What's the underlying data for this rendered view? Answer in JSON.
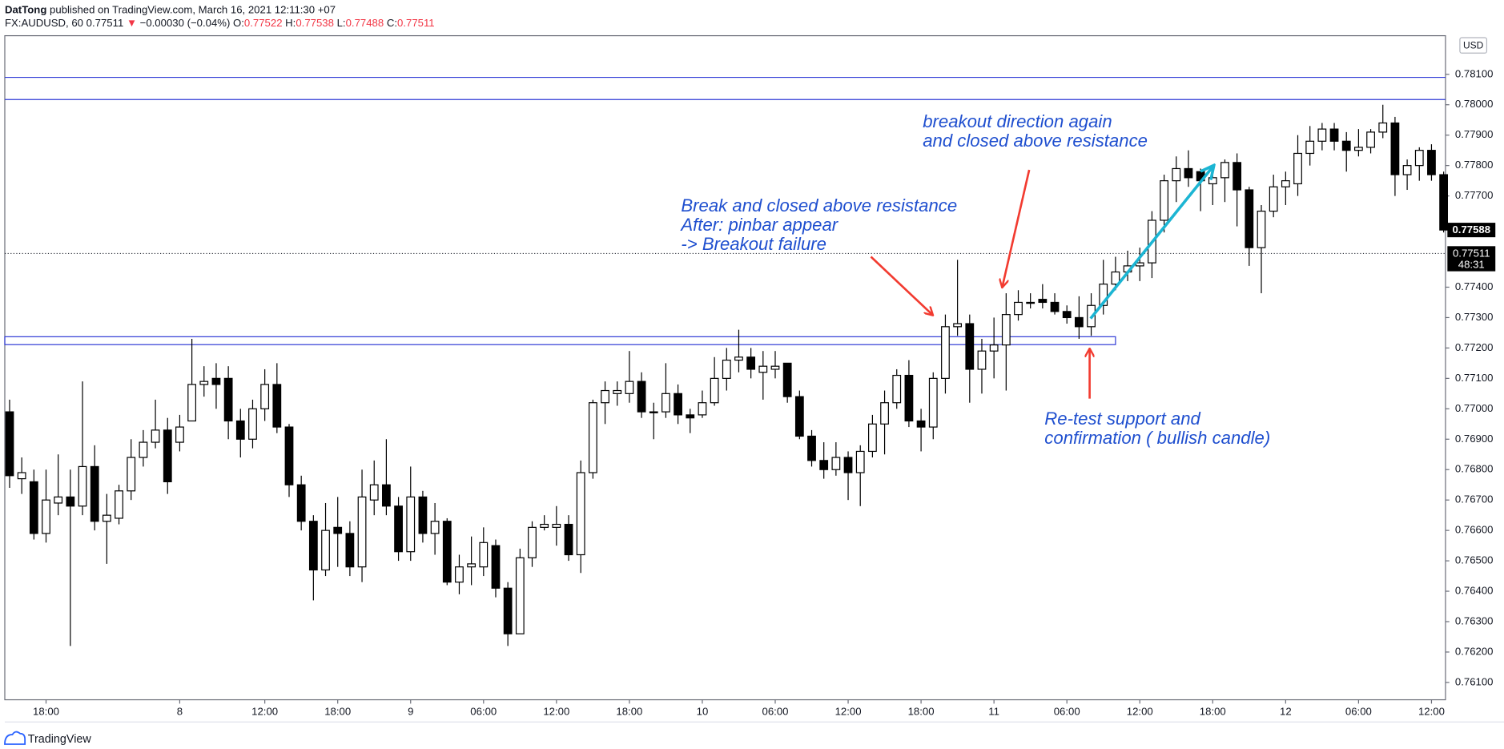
{
  "header": {
    "author": "DatTong",
    "published": "published on TradingView.com, March 16, 2021 12:11:30 +07",
    "symbol": "FX:AUDUSD, 60",
    "last": "0.77511",
    "arrow": "▼",
    "change": "−0.00030 (−0.04%)",
    "o_label": "O:",
    "o": "0.77522",
    "h_label": "H:",
    "h": "0.77538",
    "l_label": "L:",
    "l": "0.77488",
    "c_label": "C:",
    "c": "0.77511"
  },
  "footer": {
    "brand": "TradingView"
  },
  "chart_data": {
    "type": "candlestick",
    "categories": [
      null,
      null,
      null,
      "18:00",
      null,
      null,
      null,
      null,
      null,
      null,
      null,
      null,
      null,
      null,
      "8",
      null,
      null,
      null,
      null,
      null,
      null,
      "12:00",
      null,
      null,
      null,
      null,
      null,
      "18:00",
      null,
      null,
      null,
      null,
      null,
      "9",
      null,
      null,
      null,
      null,
      null,
      "06:00",
      null,
      null,
      null,
      null,
      null,
      "12:00",
      null,
      null,
      null,
      null,
      null,
      "18:00",
      null,
      null,
      null,
      null,
      null,
      "10",
      null,
      null,
      null,
      null,
      null,
      "06:00",
      null,
      null,
      null,
      null,
      null,
      "12:00",
      null,
      null,
      null,
      null,
      null,
      "18:00",
      null,
      null,
      null,
      null,
      null,
      "11",
      null,
      null,
      null,
      null,
      null,
      "06:00",
      null,
      null,
      null,
      null,
      null,
      "12:00",
      null,
      null,
      null,
      null,
      null,
      "18:00",
      null,
      null,
      null,
      null,
      null,
      "12",
      null,
      null,
      null,
      null,
      null,
      "06:00",
      null,
      null,
      null,
      null,
      null,
      "12:00",
      null
    ],
    "open": [
      0.7699,
      0.7677,
      0.7676,
      0.7659,
      0.7669,
      0.7671,
      0.7668,
      0.7681,
      0.7663,
      0.7664,
      0.7673,
      0.7684,
      0.7689,
      0.7693,
      0.7689,
      0.7696,
      0.7708,
      0.771,
      0.771,
      0.7696,
      0.769,
      0.77,
      0.7708,
      0.7694,
      0.7675,
      0.7663,
      0.7647,
      0.7661,
      0.7659,
      0.7648,
      0.767,
      0.7675,
      0.7668,
      0.7653,
      0.7671,
      0.7659,
      0.7663,
      0.7643,
      0.7648,
      0.7648,
      0.7655,
      0.7641,
      0.7626,
      0.7651,
      0.7661,
      0.7661,
      0.7662,
      0.7652,
      0.7679,
      0.7702,
      0.7705,
      0.7705,
      0.7709,
      0.7699,
      0.7699,
      0.7705,
      0.7698,
      0.7698,
      0.7702,
      0.771,
      0.7716,
      0.7717,
      0.7712,
      0.7713,
      0.7715,
      0.7704,
      0.7691,
      0.7683,
      0.768,
      0.7684,
      0.7679,
      0.7686,
      0.7695,
      0.7702,
      0.7711,
      0.7696,
      0.7694,
      0.771,
      0.7727,
      0.7728,
      0.7713,
      0.7719,
      0.7721,
      0.7731,
      0.7735,
      0.7736,
      0.7735,
      0.7732,
      0.773,
      0.7727,
      0.7734,
      0.7741,
      0.7745,
      0.7747,
      0.7748,
      0.7762,
      0.7775,
      0.7779,
      0.7778,
      0.7774,
      0.7776,
      0.7781,
      0.7772,
      0.7753,
      0.7765,
      0.7773,
      0.7774,
      0.7784,
      0.7788,
      0.7792,
      0.7788,
      0.7785,
      0.7786,
      0.7791,
      0.7794,
      0.7777,
      0.778,
      0.7785,
      0.7777
    ],
    "high": [
      0.7703,
      0.7684,
      0.768,
      0.768,
      0.7685,
      0.768,
      0.7709,
      0.7688,
      0.7672,
      0.7675,
      0.769,
      0.7693,
      0.7703,
      0.7697,
      0.7698,
      0.7723,
      0.7714,
      0.7715,
      0.7714,
      0.77,
      0.7703,
      0.7713,
      0.7715,
      0.7695,
      0.7678,
      0.7665,
      0.7669,
      0.7671,
      0.7663,
      0.768,
      0.7683,
      0.769,
      0.7671,
      0.7681,
      0.7673,
      0.7669,
      0.7664,
      0.7652,
      0.7658,
      0.7661,
      0.7657,
      0.7643,
      0.7654,
      0.7663,
      0.7665,
      0.7668,
      0.7665,
      0.7683,
      0.7703,
      0.7709,
      0.7709,
      0.7719,
      0.7712,
      0.7702,
      0.7715,
      0.7708,
      0.77,
      0.7706,
      0.7717,
      0.772,
      0.7726,
      0.772,
      0.7719,
      0.7719,
      0.7715,
      0.7706,
      0.7693,
      0.7689,
      0.7689,
      0.7686,
      0.7688,
      0.7698,
      0.7706,
      0.7713,
      0.7716,
      0.77,
      0.7712,
      0.7731,
      0.7749,
      0.7731,
      0.7723,
      0.773,
      0.7738,
      0.7739,
      0.7738,
      0.7741,
      0.7738,
      0.7734,
      0.7737,
      0.7738,
      0.7749,
      0.775,
      0.7752,
      0.7753,
      0.7765,
      0.7777,
      0.7783,
      0.7785,
      0.7779,
      0.778,
      0.7782,
      0.7784,
      0.7773,
      0.7767,
      0.7777,
      0.7778,
      0.779,
      0.7793,
      0.7794,
      0.7794,
      0.7791,
      0.7792,
      0.7792,
      0.78,
      0.7796,
      0.7782,
      0.7786,
      0.7787,
      0.7778
    ],
    "low": [
      0.7674,
      0.7672,
      0.7657,
      0.7656,
      0.7665,
      0.7622,
      0.7665,
      0.766,
      0.7649,
      0.7662,
      0.767,
      0.7681,
      0.7687,
      0.7672,
      0.7686,
      0.7696,
      0.7704,
      0.77,
      0.769,
      0.7684,
      0.7687,
      0.7696,
      0.7692,
      0.7671,
      0.766,
      0.7637,
      0.7645,
      0.7648,
      0.7645,
      0.7643,
      0.7665,
      0.7665,
      0.765,
      0.765,
      0.7656,
      0.7652,
      0.7642,
      0.7639,
      0.7642,
      0.7645,
      0.7638,
      0.7622,
      0.7626,
      0.7648,
      0.766,
      0.7655,
      0.765,
      0.7646,
      0.7677,
      0.7695,
      0.7701,
      0.7702,
      0.7697,
      0.769,
      0.7697,
      0.7695,
      0.7692,
      0.7697,
      0.7701,
      0.7706,
      0.7712,
      0.771,
      0.7703,
      0.771,
      0.7702,
      0.769,
      0.7681,
      0.7677,
      0.7678,
      0.767,
      0.7668,
      0.7684,
      0.7685,
      0.77,
      0.7694,
      0.7686,
      0.769,
      0.7705,
      0.7724,
      0.7702,
      0.7705,
      0.771,
      0.7706,
      0.7729,
      0.7733,
      0.7733,
      0.7731,
      0.7728,
      0.7723,
      0.7724,
      0.7731,
      0.7739,
      0.7742,
      0.7742,
      0.7743,
      0.7758,
      0.7768,
      0.7773,
      0.7765,
      0.7767,
      0.7768,
      0.776,
      0.7747,
      0.7738,
      0.7763,
      0.7767,
      0.777,
      0.778,
      0.7785,
      0.7785,
      0.7778,
      0.7783,
      0.7784,
      0.7789,
      0.777,
      0.7772,
      0.7775,
      0.7775,
      0.7758
    ],
    "close": [
      0.7678,
      0.7679,
      0.7659,
      0.767,
      0.7671,
      0.7668,
      0.7681,
      0.7663,
      0.7665,
      0.7673,
      0.7684,
      0.7689,
      0.7693,
      0.7676,
      0.7694,
      0.7708,
      0.7709,
      0.7708,
      0.7696,
      0.769,
      0.77,
      0.7708,
      0.7694,
      0.7675,
      0.7663,
      0.7647,
      0.766,
      0.7659,
      0.7648,
      0.7671,
      0.7675,
      0.7668,
      0.7653,
      0.7671,
      0.7659,
      0.7663,
      0.7643,
      0.7648,
      0.7649,
      0.7656,
      0.7641,
      0.7626,
      0.7651,
      0.7661,
      0.7662,
      0.7662,
      0.7652,
      0.7679,
      0.7702,
      0.7706,
      0.7706,
      0.7709,
      0.7699,
      0.7699,
      0.7705,
      0.7698,
      0.7697,
      0.7702,
      0.771,
      0.7716,
      0.7717,
      0.7713,
      0.7714,
      0.7714,
      0.7704,
      0.7691,
      0.7683,
      0.768,
      0.7684,
      0.7679,
      0.7686,
      0.7695,
      0.7702,
      0.7711,
      0.7696,
      0.7694,
      0.771,
      0.7727,
      0.7728,
      0.7713,
      0.7719,
      0.7721,
      0.7731,
      0.7735,
      0.7735,
      0.7735,
      0.7732,
      0.773,
      0.7727,
      0.7734,
      0.7741,
      0.7745,
      0.7747,
      0.7748,
      0.7762,
      0.7775,
      0.7779,
      0.7776,
      0.7775,
      0.7776,
      0.7781,
      0.7772,
      0.7753,
      0.7765,
      0.7773,
      0.7775,
      0.7784,
      0.7788,
      0.7792,
      0.7788,
      0.7785,
      0.7786,
      0.7791,
      0.7794,
      0.7777,
      0.778,
      0.7785,
      0.7777,
      0.77588
    ],
    "up_color": "#ffffff",
    "down_color": "#000000",
    "wick_color": "#000000",
    "ylim": [
      0.76043,
      0.78227
    ],
    "yticks": [
      {
        "value": 0.761,
        "label": "0.76100"
      },
      {
        "value": 0.762,
        "label": "0.76200"
      },
      {
        "value": 0.763,
        "label": "0.76300"
      },
      {
        "value": 0.764,
        "label": "0.76400"
      },
      {
        "value": 0.765,
        "label": "0.76500"
      },
      {
        "value": 0.766,
        "label": "0.76600"
      },
      {
        "value": 0.767,
        "label": "0.76700"
      },
      {
        "value": 0.768,
        "label": "0.76800"
      },
      {
        "value": 0.769,
        "label": "0.76900"
      },
      {
        "value": 0.77,
        "label": "0.77000"
      },
      {
        "value": 0.771,
        "label": "0.77100"
      },
      {
        "value": 0.772,
        "label": "0.77200"
      },
      {
        "value": 0.773,
        "label": "0.77300"
      },
      {
        "value": 0.774,
        "label": "0.77400"
      },
      {
        "value": 0.777,
        "label": "0.77700"
      },
      {
        "value": 0.778,
        "label": "0.77800"
      },
      {
        "value": 0.779,
        "label": "0.77900"
      },
      {
        "value": 0.78,
        "label": "0.78000"
      },
      {
        "value": 0.781,
        "label": "0.78100"
      }
    ],
    "currency": "USD",
    "hlines": [
      0.7809,
      0.78017
    ],
    "hline_color": "#2f3ad6",
    "zone": {
      "low": 0.77211,
      "high": 0.77237,
      "end": 91
    },
    "price_line": {
      "value": 0.77511,
      "label": "0.77511",
      "countdown": "48:31"
    },
    "close_label": {
      "value": 0.77588,
      "label": "0.77588"
    },
    "annotations": [
      [
        "Break and closed above resistance",
        "After: pinbar appear",
        "-> Breakout failure"
      ],
      [
        "breakout direction again",
        "and closed above resistance"
      ],
      [
        "Re-test support and",
        "confirmation ( bullish candle)"
      ]
    ]
  }
}
